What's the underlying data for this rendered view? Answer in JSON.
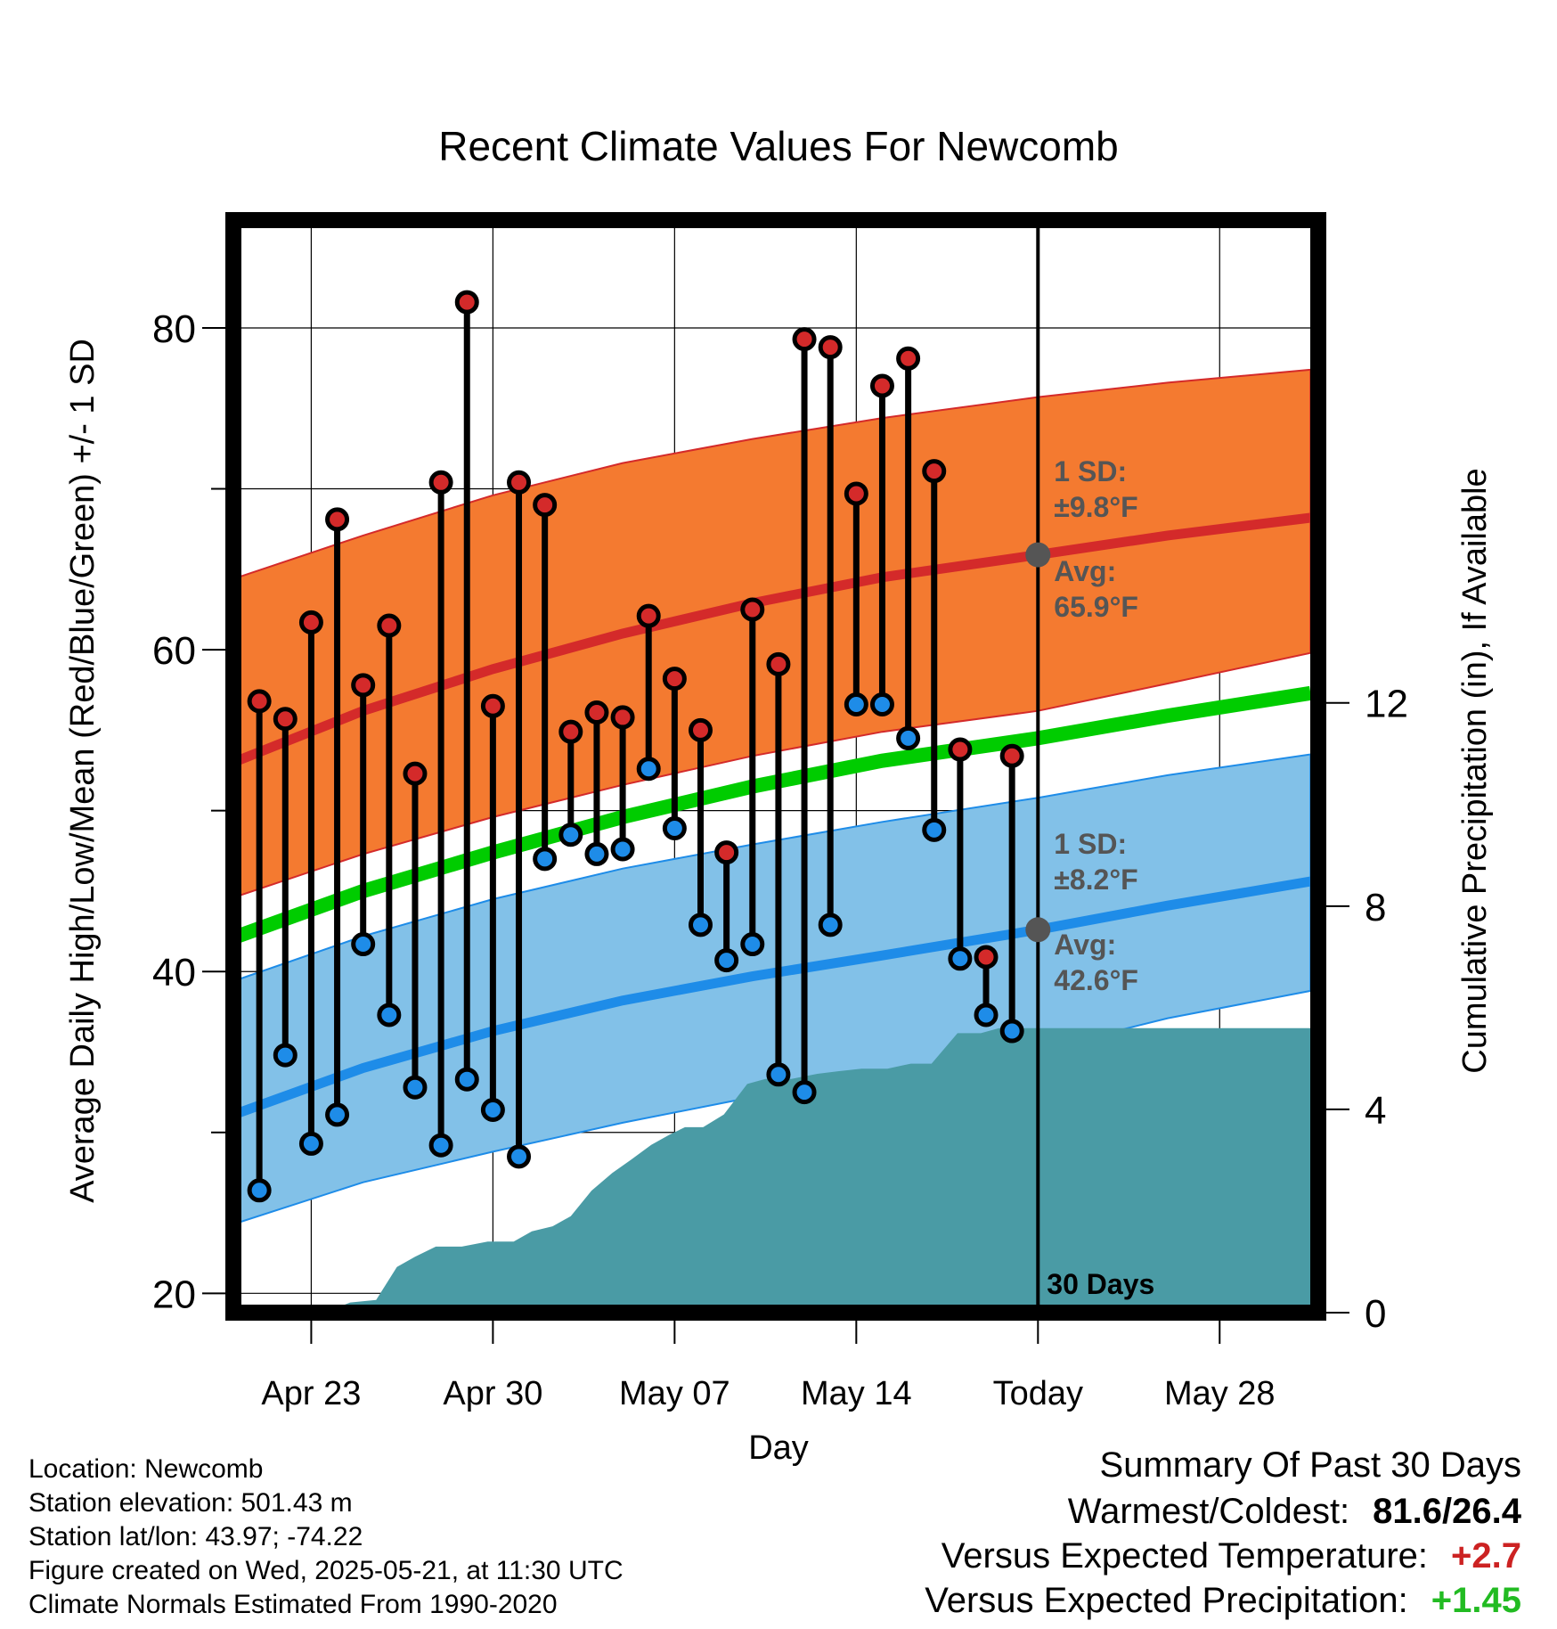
{
  "chart_data": {
    "type": "line",
    "title": "Recent Climate Values For Newcomb",
    "xlabel": "Day",
    "ylabel": "Average Daily High/Low/Mean (Red/Blue/Green) +/- 1 SD",
    "y2label": "Cumulative Precipitation (in), If Available",
    "x_ticks": [
      "Apr 23",
      "Apr 30",
      "May 07",
      "May 14",
      "Today",
      "May 28"
    ],
    "x_tick_days": [
      3,
      10,
      17,
      24,
      31,
      38
    ],
    "xlim": [
      0,
      41.8
    ],
    "ylim": [
      18.8,
      86.7
    ],
    "y_ticks": [
      20,
      40,
      60,
      80
    ],
    "y2lim": [
      0,
      21.5
    ],
    "y2_ticks": [
      0,
      4,
      8,
      12
    ],
    "grid": true,
    "today_day": 31,
    "today_label": "30 Days",
    "high_avg_label": "Avg: 65.9°F",
    "high_sd_label": "1 SD: ±9.8°F",
    "low_avg_label": "Avg: 42.6°F",
    "low_sd_label": "1 SD: ±8.2°F",
    "normals": {
      "day": [
        -0.5,
        5,
        10,
        15,
        20,
        25,
        31,
        36,
        41.5
      ],
      "high_mean": [
        53.0,
        56.2,
        58.8,
        61.0,
        62.9,
        64.5,
        65.9,
        67.1,
        68.2
      ],
      "high_upper": [
        64.4,
        67.1,
        69.6,
        71.6,
        73.1,
        74.4,
        75.7,
        76.6,
        77.4
      ],
      "high_lower": [
        44.6,
        47.3,
        49.6,
        51.6,
        53.4,
        54.9,
        56.2,
        57.9,
        59.8
      ],
      "mean": [
        42.1,
        45.0,
        47.4,
        49.6,
        51.5,
        53.1,
        54.5,
        55.9,
        57.3
      ],
      "low_mean": [
        31.1,
        34.0,
        36.3,
        38.2,
        39.7,
        41.0,
        42.6,
        44.1,
        45.6
      ],
      "low_upper": [
        39.4,
        42.2,
        44.5,
        46.4,
        47.9,
        49.3,
        50.8,
        52.2,
        53.5
      ],
      "low_lower": [
        24.3,
        26.9,
        28.8,
        30.6,
        32.2,
        33.6,
        35.1,
        37.1,
        38.8
      ]
    },
    "daily": {
      "day": [
        1,
        2,
        3,
        4,
        5,
        6,
        7,
        8,
        9,
        10,
        11,
        12,
        13,
        14,
        15,
        16,
        17,
        18,
        19,
        20,
        21,
        22,
        23,
        24,
        25,
        26,
        27,
        28,
        29,
        30
      ],
      "high": [
        56.8,
        55.7,
        61.7,
        68.1,
        57.8,
        61.5,
        52.3,
        70.4,
        81.6,
        56.5,
        70.4,
        69.0,
        54.9,
        56.1,
        55.8,
        62.1,
        58.2,
        55.0,
        47.4,
        62.5,
        59.1,
        79.3,
        78.8,
        69.7,
        76.4,
        78.1,
        71.1,
        53.8,
        40.9,
        53.4
      ],
      "low": [
        26.4,
        34.8,
        29.3,
        31.1,
        41.7,
        37.3,
        32.8,
        29.2,
        33.3,
        31.4,
        28.5,
        47.0,
        48.5,
        47.3,
        47.6,
        52.6,
        48.9,
        42.9,
        40.7,
        41.7,
        33.6,
        32.5,
        42.9,
        56.6,
        56.6,
        54.5,
        48.8,
        40.8,
        37.3,
        36.3
      ]
    },
    "precip": {
      "day": [
        -0.5,
        3.5,
        4.5,
        5.5,
        6.3,
        7,
        7.8,
        8.8,
        9.8,
        10.8,
        11.5,
        12.3,
        13,
        13.8,
        14.6,
        15.3,
        16.1,
        16.8,
        17.4,
        18.1,
        18.9,
        19.8,
        20.5,
        21.5,
        22.5,
        23.3,
        24.2,
        25.2,
        26.1,
        26.9,
        27.9,
        28.8,
        29.5,
        30.5,
        31,
        41.5
      ],
      "value": [
        0,
        0,
        0.2,
        0.25,
        0.9,
        1.1,
        1.3,
        1.3,
        1.4,
        1.4,
        1.6,
        1.7,
        1.9,
        2.4,
        2.75,
        3.0,
        3.3,
        3.5,
        3.65,
        3.65,
        3.9,
        4.5,
        4.6,
        4.6,
        4.7,
        4.75,
        4.8,
        4.8,
        4.9,
        4.9,
        5.5,
        5.5,
        5.6,
        5.6,
        5.6,
        5.6
      ]
    }
  },
  "footer": {
    "location": "Location: Newcomb",
    "elevation": "Station elevation: 501.43 m",
    "latlon": "Station lat/lon: 43.97; -74.22",
    "created": "Figure created on Wed, 2025-05-21, at 11:30 UTC",
    "normals": "Climate Normals Estimated From 1990-2020"
  },
  "summary": {
    "title": "Summary Of Past 30 Days",
    "warmest_coldest_label": "Warmest/Coldest:",
    "warmest_coldest_value": "81.6/26.4",
    "temp_label": "Versus Expected Temperature:",
    "temp_value": "+2.7",
    "precip_label": "Versus Expected Precipitation:",
    "precip_value": "+1.45"
  },
  "colors": {
    "high_band": "#f47a30",
    "high_line": "#d42a2a",
    "low_band": "#82c1e8",
    "low_line": "#1e8ce8",
    "mean_line": "#00cc00",
    "precip": "#4a9ba5",
    "high_dot": "#d42a2a",
    "low_dot": "#1e8ce8",
    "annotation": "#555555",
    "temp_value": "#cc2222",
    "precip_value": "#22bb22"
  }
}
